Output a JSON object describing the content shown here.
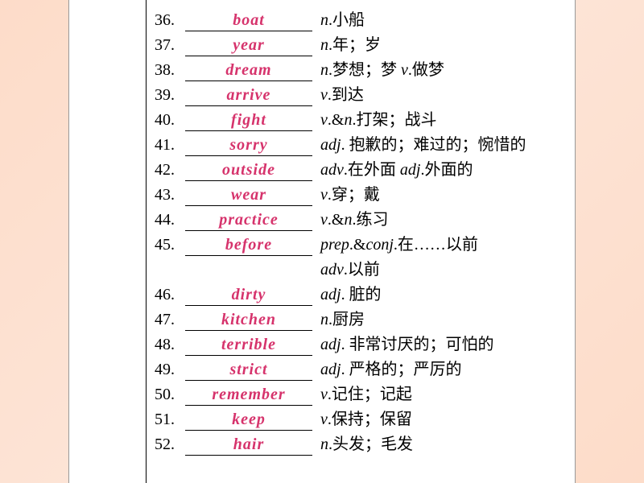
{
  "entries": [
    {
      "num": "36.",
      "word": "boat",
      "def": "<span class='pos'>n</span>.小船"
    },
    {
      "num": "37.",
      "word": "year",
      "def": "<span class='pos'>n</span>.年；岁"
    },
    {
      "num": "38.",
      "word": "dream",
      "def": "<span class='pos'>n</span>.梦想；梦 <span class='pos'>v</span>.做梦"
    },
    {
      "num": "39.",
      "word": "arrive",
      "def": "<span class='pos'>v</span>.到达"
    },
    {
      "num": "40.",
      "word": "fight",
      "def": "<span class='pos'>v</span>.&amp;<span class='pos'>n</span>.打架；战斗"
    },
    {
      "num": "41.",
      "word": "sorry",
      "def": "<span class='pos'>adj</span>. 抱歉的；难过的；惋惜的"
    },
    {
      "num": "42.",
      "word": "outside",
      "def": "<span class='pos'>adv</span>.在外面 <span class='pos'>adj</span>.外面的"
    },
    {
      "num": "43.",
      "word": "wear",
      "def": "<span class='pos'>v</span>.穿；戴"
    },
    {
      "num": "44.",
      "word": "practice",
      "def": "<span class='pos'>v</span>.&amp;<span class='pos'>n</span>.练习"
    },
    {
      "num": "45.",
      "word": "before",
      "def": "<span class='pos'>prep</span>.&amp;<span class='pos'>conj</span>.在……以前"
    },
    {
      "num": "",
      "word": "",
      "def": "<span class='pos'>adv</span>.以前",
      "cont": true
    },
    {
      "num": "46.",
      "word": "dirty",
      "def": "<span class='pos'>adj</span>. 脏的"
    },
    {
      "num": "47.",
      "word": "kitchen",
      "def": "<span class='pos'>n</span>.厨房"
    },
    {
      "num": "48.",
      "word": "terrible",
      "def": "<span class='pos'>adj</span>. 非常讨厌的；可怕的"
    },
    {
      "num": "49.",
      "word": "strict",
      "def": "<span class='pos'>adj</span>. 严格的；严厉的"
    },
    {
      "num": "50.",
      "word": "remember",
      "def": "<span class='pos'>v</span>.记住；记起"
    },
    {
      "num": "51.",
      "word": "keep",
      "def": "<span class='pos'>v</span>.保持；保留"
    },
    {
      "num": "52.",
      "word": "hair",
      "def": "<span class='pos'>n</span>.头发；毛发"
    }
  ],
  "style": {
    "word_color": "#d6336c",
    "background_gradient": [
      "#fddcc9",
      "#fde4d6",
      "#fddcc9"
    ],
    "page_bg": "#ffffff",
    "font_size": 20
  }
}
